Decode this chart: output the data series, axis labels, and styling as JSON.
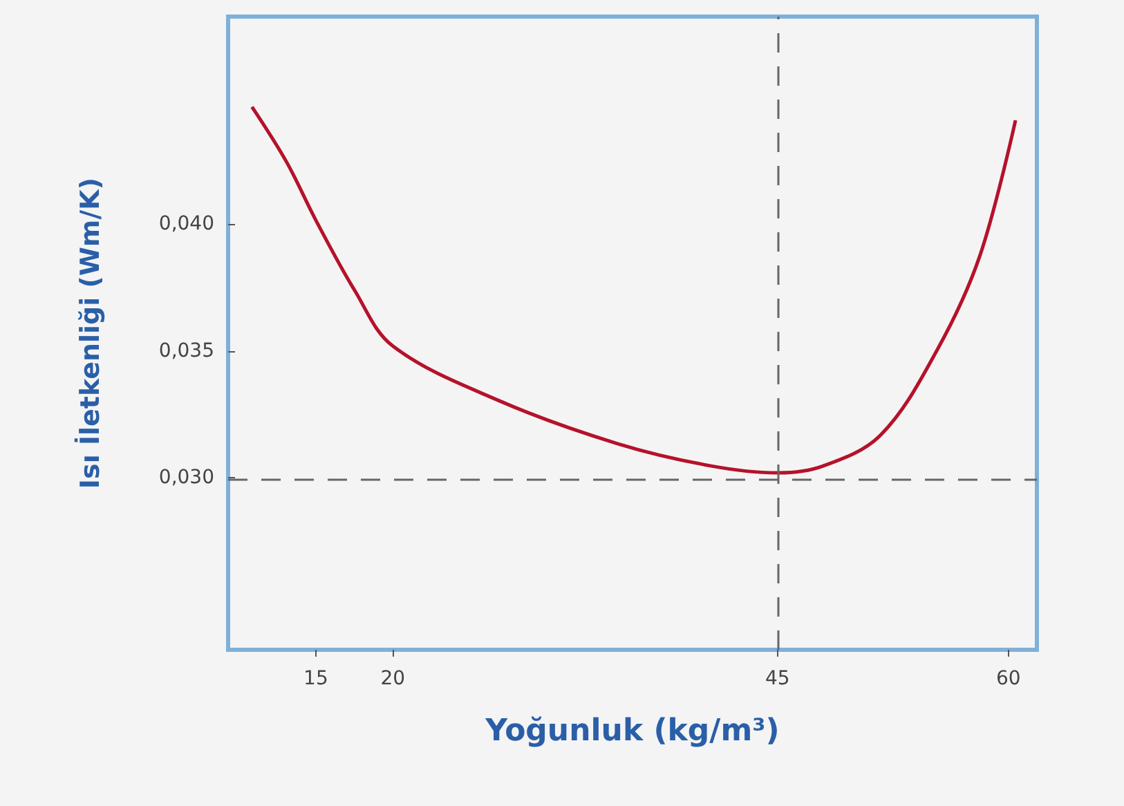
{
  "chart_data": {
    "type": "line",
    "xlabel": "Yoğunluk (kg/m³)",
    "ylabel": "Isı İletkenliği (Wm/K)",
    "x": [
      10.85,
      13.08,
      15,
      17.54,
      20,
      26.9,
      34.6,
      40.7,
      45,
      47.96,
      51.7,
      55.4,
      58.15,
      60.46
    ],
    "series": [
      {
        "color": "#b5122b",
        "values": [
          0.0446,
          0.04245,
          0.04014,
          0.03736,
          0.03519,
          0.03304,
          0.03135,
          0.03047,
          0.0302,
          0.03047,
          0.03169,
          0.03507,
          0.03875,
          0.04407
        ]
      }
    ],
    "xlim": [
      9.3,
      61.85
    ],
    "xticks": [
      15,
      20,
      45,
      60
    ],
    "ylim": [
      0.02324,
      0.04815
    ],
    "yticks": [
      {
        "value": 0.03,
        "label": "0,030"
      },
      {
        "value": 0.035,
        "label": "0,035"
      },
      {
        "value": 0.04,
        "label": "0,040"
      }
    ],
    "ref_lines": [
      {
        "axis": "x",
        "value": 45,
        "color": "#666666",
        "line_style": "dashed"
      },
      {
        "axis": "y",
        "value": 0.03,
        "color": "#666666",
        "line_style": "dashed"
      }
    ],
    "marker": "none",
    "line_style": "solid",
    "grid": false
  }
}
